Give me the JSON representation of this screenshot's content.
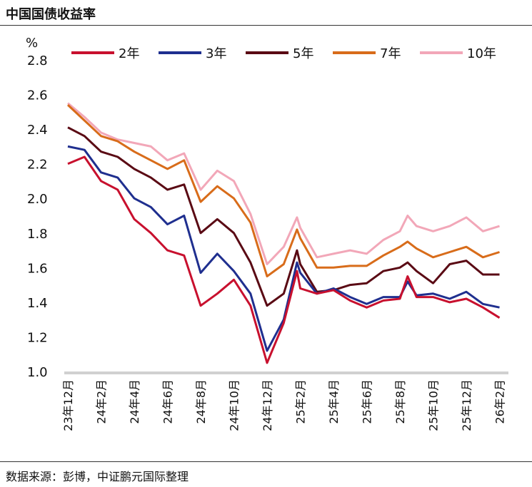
{
  "title": "中国国债收益率",
  "source": "数据来源：彭博，中证鹏元国际整理",
  "chart_data": {
    "type": "line",
    "title": "中国国债收益率",
    "ylabel": "%",
    "ylim": [
      1.0,
      2.8
    ],
    "yticks": [
      "1.0",
      "1.2",
      "1.4",
      "1.6",
      "1.8",
      "2.0",
      "2.2",
      "2.4",
      "2.6",
      "2.8"
    ],
    "xticks": [
      "23年12月",
      "24年2月",
      "24年4月",
      "24年6月",
      "24年8月",
      "24年10月",
      "24年12月",
      "25年2月",
      "25年4月",
      "25年6月",
      "25年8月",
      "25年10月",
      "25年12月",
      "26年2月"
    ],
    "grid": false,
    "legend": "top",
    "x": [
      "2023-12",
      "2024-01",
      "2024-02",
      "2024-03",
      "2024-04",
      "2024-05",
      "2024-06",
      "2024-07",
      "2024-08",
      "2024-09",
      "2024-10",
      "2024-11",
      "2024-12",
      "2025-01",
      "2025-01-25",
      "2025-02",
      "2025-03",
      "2025-04",
      "2025-05",
      "2025-06",
      "2025-07",
      "2025-08",
      "2025-08-15",
      "2025-09",
      "2025-10",
      "2025-11",
      "2025-12",
      "2026-01",
      "2026-02"
    ],
    "series": [
      {
        "name": "2年",
        "color": "#c8102e",
        "values": [
          2.2,
          2.24,
          2.1,
          2.05,
          1.88,
          1.8,
          1.7,
          1.67,
          1.38,
          1.45,
          1.53,
          1.38,
          1.05,
          1.28,
          1.58,
          1.48,
          1.45,
          1.47,
          1.41,
          1.37,
          1.41,
          1.42,
          1.55,
          1.43,
          1.43,
          1.4,
          1.42,
          1.37,
          1.31
        ]
      },
      {
        "name": "3年",
        "color": "#1f2f8f",
        "values": [
          2.3,
          2.28,
          2.15,
          2.12,
          2.0,
          1.95,
          1.85,
          1.9,
          1.57,
          1.68,
          1.58,
          1.45,
          1.12,
          1.3,
          1.63,
          1.57,
          1.45,
          1.48,
          1.43,
          1.39,
          1.43,
          1.43,
          1.52,
          1.44,
          1.45,
          1.42,
          1.46,
          1.39,
          1.37
        ]
      },
      {
        "name": "5年",
        "color": "#5a0a14",
        "values": [
          2.41,
          2.36,
          2.27,
          2.24,
          2.17,
          2.12,
          2.05,
          2.08,
          1.8,
          1.88,
          1.8,
          1.63,
          1.38,
          1.45,
          1.7,
          1.62,
          1.46,
          1.47,
          1.5,
          1.51,
          1.58,
          1.6,
          1.63,
          1.58,
          1.51,
          1.62,
          1.64,
          1.56,
          1.56
        ]
      },
      {
        "name": "7年",
        "color": "#d86c1a",
        "values": [
          2.54,
          2.45,
          2.36,
          2.33,
          2.27,
          2.22,
          2.17,
          2.22,
          1.98,
          2.07,
          2.0,
          1.86,
          1.55,
          1.62,
          1.82,
          1.77,
          1.6,
          1.6,
          1.61,
          1.61,
          1.67,
          1.72,
          1.75,
          1.71,
          1.66,
          1.69,
          1.72,
          1.66,
          1.69
        ]
      },
      {
        "name": "10年",
        "color": "#f2a7b8",
        "values": [
          2.55,
          2.47,
          2.38,
          2.34,
          2.32,
          2.3,
          2.22,
          2.26,
          2.05,
          2.16,
          2.1,
          1.91,
          1.62,
          1.72,
          1.89,
          1.83,
          1.66,
          1.68,
          1.7,
          1.68,
          1.76,
          1.81,
          1.9,
          1.84,
          1.81,
          1.84,
          1.89,
          1.81,
          1.84
        ]
      }
    ]
  }
}
